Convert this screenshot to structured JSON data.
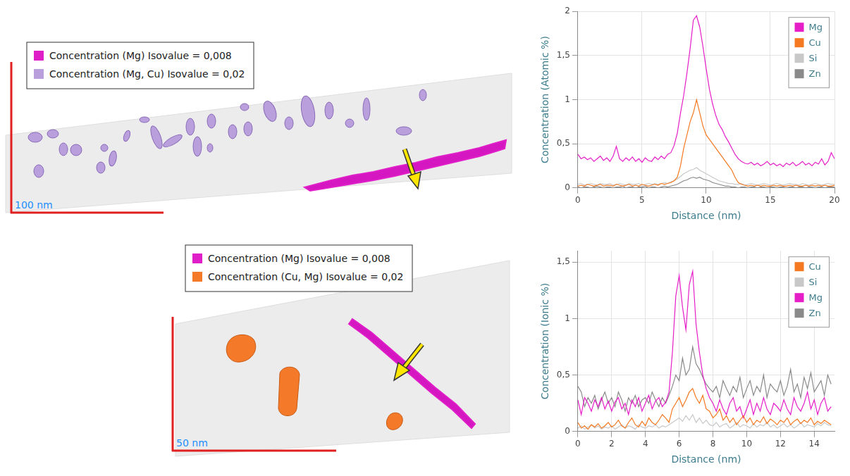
{
  "renders": [
    {
      "legend": [
        {
          "label": "Concentration (Mg) Isovalue = 0,008",
          "color": "#e01ec8"
        },
        {
          "label": "Concentration (Mg, Cu) Isovalue = 0,02",
          "color": "#b9a0dc"
        }
      ],
      "scale_bar": "100 nm"
    },
    {
      "legend": [
        {
          "label": "Concentration (Mg) Isovalue = 0,008",
          "color": "#e01ec8"
        },
        {
          "label": "Concentration (Cu, Mg) Isovalue = 0,02",
          "color": "#f47a2a"
        }
      ],
      "scale_bar": "50 nm"
    }
  ],
  "chart_data": [
    {
      "type": "line",
      "xlabel": "Distance (nm)",
      "ylabel": "Concentration (Atomic %)",
      "x": [
        0,
        0.25,
        0.5,
        0.75,
        1,
        1.25,
        1.5,
        1.75,
        2,
        2.25,
        2.5,
        2.75,
        3,
        3.25,
        3.5,
        3.75,
        4,
        4.25,
        4.5,
        4.75,
        5,
        5.25,
        5.5,
        5.75,
        6,
        6.25,
        6.5,
        6.75,
        7,
        7.25,
        7.5,
        7.75,
        8,
        8.25,
        8.5,
        8.75,
        9,
        9.25,
        9.5,
        9.75,
        10,
        10.25,
        10.5,
        10.75,
        11,
        11.25,
        11.5,
        11.75,
        12,
        12.25,
        12.5,
        12.75,
        13,
        13.25,
        13.5,
        13.75,
        14,
        14.25,
        14.5,
        14.75,
        15,
        15.25,
        15.5,
        15.75,
        16,
        16.25,
        16.5,
        16.75,
        17,
        17.25,
        17.5,
        17.75,
        18,
        18.25,
        18.5,
        18.75,
        19,
        19.25,
        19.5,
        19.75,
        20
      ],
      "series": [
        {
          "name": "Mg",
          "color": "#e61ec8",
          "values": [
            0.38,
            0.33,
            0.35,
            0.32,
            0.34,
            0.3,
            0.33,
            0.36,
            0.31,
            0.34,
            0.3,
            0.36,
            0.47,
            0.33,
            0.3,
            0.34,
            0.31,
            0.35,
            0.3,
            0.33,
            0.29,
            0.34,
            0.31,
            0.3,
            0.35,
            0.32,
            0.36,
            0.33,
            0.38,
            0.4,
            0.48,
            0.62,
            0.85,
            1.05,
            1.3,
            1.58,
            1.9,
            1.95,
            1.82,
            1.6,
            1.35,
            1.12,
            0.95,
            0.82,
            0.72,
            0.66,
            0.58,
            0.52,
            0.45,
            0.38,
            0.33,
            0.3,
            0.28,
            0.27,
            0.29,
            0.26,
            0.28,
            0.25,
            0.27,
            0.3,
            0.26,
            0.28,
            0.25,
            0.27,
            0.24,
            0.28,
            0.26,
            0.29,
            0.25,
            0.27,
            0.3,
            0.26,
            0.28,
            0.25,
            0.29,
            0.27,
            0.33,
            0.26,
            0.3,
            0.4,
            0.33
          ]
        },
        {
          "name": "Cu",
          "color": "#f47920",
          "values": [
            0.02,
            0.03,
            0.02,
            0.04,
            0.03,
            0.02,
            0.03,
            0.04,
            0.02,
            0.03,
            0.03,
            0.02,
            0.04,
            0.03,
            0.02,
            0.03,
            0.04,
            0.02,
            0.03,
            0.02,
            0.04,
            0.03,
            0.02,
            0.03,
            0.04,
            0.03,
            0.05,
            0.04,
            0.05,
            0.06,
            0.08,
            0.12,
            0.25,
            0.45,
            0.6,
            0.75,
            0.85,
            1.0,
            0.85,
            0.7,
            0.6,
            0.55,
            0.5,
            0.45,
            0.4,
            0.35,
            0.3,
            0.25,
            0.2,
            0.12,
            0.06,
            0.04,
            0.03,
            0.02,
            0.03,
            0.02,
            0.03,
            0.02,
            0.03,
            0.02,
            0.02,
            0.03,
            0.02,
            0.03,
            0.02,
            0.02,
            0.03,
            0.02,
            0.03,
            0.02,
            0.02,
            0.03,
            0.02,
            0.03,
            0.02,
            0.03,
            0.02,
            0.03,
            0.02,
            0.02,
            0.03
          ]
        },
        {
          "name": "Si",
          "color": "#c8c8c8",
          "values": [
            0.04,
            0.05,
            0.03,
            0.04,
            0.05,
            0.04,
            0.03,
            0.05,
            0.04,
            0.04,
            0.05,
            0.03,
            0.04,
            0.05,
            0.04,
            0.03,
            0.05,
            0.04,
            0.04,
            0.05,
            0.03,
            0.04,
            0.05,
            0.04,
            0.05,
            0.04,
            0.05,
            0.06,
            0.05,
            0.07,
            0.08,
            0.1,
            0.13,
            0.16,
            0.18,
            0.2,
            0.21,
            0.23,
            0.2,
            0.18,
            0.16,
            0.14,
            0.12,
            0.1,
            0.08,
            0.07,
            0.06,
            0.05,
            0.05,
            0.04,
            0.04,
            0.05,
            0.03,
            0.04,
            0.05,
            0.04,
            0.03,
            0.04,
            0.05,
            0.04,
            0.03,
            0.04,
            0.05,
            0.04,
            0.03,
            0.04,
            0.05,
            0.04,
            0.04,
            0.03,
            0.05,
            0.04,
            0.03,
            0.04,
            0.05,
            0.04,
            0.03,
            0.04,
            0.05,
            0.04,
            0.04
          ]
        },
        {
          "name": "Zn",
          "color": "#8a8a8a",
          "values": [
            0.01,
            0.0,
            0.01,
            0.01,
            0.0,
            0.01,
            0.02,
            0.01,
            0.0,
            0.01,
            0.01,
            0.0,
            0.01,
            0.01,
            0.02,
            0.0,
            0.01,
            0.01,
            0.0,
            0.01,
            0.01,
            0.02,
            0.0,
            0.01,
            0.01,
            0.0,
            0.01,
            0.02,
            0.01,
            0.02,
            0.03,
            0.04,
            0.06,
            0.08,
            0.09,
            0.11,
            0.12,
            0.11,
            0.12,
            0.1,
            0.09,
            0.08,
            0.06,
            0.05,
            0.04,
            0.03,
            0.02,
            0.02,
            0.01,
            0.01,
            0.0,
            0.01,
            0.01,
            0.0,
            0.01,
            0.01,
            0.0,
            0.01,
            0.01,
            0.0,
            0.01,
            0.01,
            0.0,
            0.01,
            0.01,
            0.0,
            0.01,
            0.01,
            0.0,
            0.01,
            0.01,
            0.0,
            0.01,
            0.01,
            0.0,
            0.01,
            0.01,
            0.0,
            0.01,
            0.01,
            0.01
          ]
        }
      ],
      "xlim": [
        0,
        20
      ],
      "ylim": [
        0,
        2
      ],
      "xticks": [
        0,
        5,
        10,
        15,
        20
      ],
      "yticks": [
        0,
        {
          "value": 0.5,
          "label": "0,5"
        },
        1,
        {
          "value": 1.5,
          "label": "1,5"
        },
        2
      ],
      "grid": true,
      "legend": "upper right"
    },
    {
      "type": "line",
      "xlabel": "Distance (nm)",
      "ylabel": "Concentration (Ionic %)",
      "x": [
        0,
        0.2,
        0.4,
        0.6,
        0.8,
        1,
        1.2,
        1.4,
        1.6,
        1.8,
        2,
        2.2,
        2.4,
        2.6,
        2.8,
        3,
        3.2,
        3.4,
        3.6,
        3.8,
        4,
        4.2,
        4.4,
        4.6,
        4.8,
        5,
        5.2,
        5.4,
        5.6,
        5.8,
        6,
        6.2,
        6.4,
        6.6,
        6.8,
        7,
        7.2,
        7.4,
        7.6,
        7.8,
        8,
        8.2,
        8.4,
        8.6,
        8.8,
        9,
        9.2,
        9.4,
        9.6,
        9.8,
        10,
        10.2,
        10.4,
        10.6,
        10.8,
        11,
        11.2,
        11.4,
        11.6,
        11.8,
        12,
        12.2,
        12.4,
        12.6,
        12.8,
        13,
        13.2,
        13.4,
        13.6,
        13.8,
        14,
        14.2,
        14.4,
        14.6,
        14.8,
        15
      ],
      "series": [
        {
          "name": "Cu",
          "color": "#f47920",
          "values": [
            0.08,
            0.03,
            0.05,
            0.02,
            0.06,
            0.04,
            0.07,
            0.03,
            0.05,
            0.08,
            0.04,
            0.06,
            0.1,
            0.05,
            0.03,
            0.08,
            0.12,
            0.06,
            0.04,
            0.09,
            0.05,
            0.12,
            0.08,
            0.06,
            0.1,
            0.15,
            0.12,
            0.08,
            0.2,
            0.25,
            0.3,
            0.22,
            0.28,
            0.35,
            0.38,
            0.3,
            0.25,
            0.32,
            0.2,
            0.18,
            0.12,
            0.15,
            0.2,
            0.1,
            0.14,
            0.08,
            0.12,
            0.06,
            0.1,
            0.14,
            0.08,
            0.12,
            0.06,
            0.1,
            0.08,
            0.13,
            0.07,
            0.11,
            0.09,
            0.06,
            0.1,
            0.08,
            0.12,
            0.06,
            0.09,
            0.11,
            0.07,
            0.1,
            0.08,
            0.12,
            0.06,
            0.09,
            0.07,
            0.1,
            0.08,
            0.06
          ]
        },
        {
          "name": "Si",
          "color": "#c8c8c8",
          "values": [
            0.03,
            0.05,
            0.02,
            0.04,
            0.06,
            0.03,
            0.05,
            0.02,
            0.04,
            0.03,
            0.05,
            0.02,
            0.04,
            0.06,
            0.03,
            0.05,
            0.04,
            0.02,
            0.06,
            0.04,
            0.03,
            0.05,
            0.04,
            0.06,
            0.03,
            0.05,
            0.04,
            0.06,
            0.08,
            0.1,
            0.12,
            0.09,
            0.14,
            0.1,
            0.15,
            0.08,
            0.12,
            0.07,
            0.1,
            0.06,
            0.05,
            0.08,
            0.04,
            0.06,
            0.07,
            0.03,
            0.05,
            0.08,
            0.04,
            0.06,
            0.05,
            0.03,
            0.07,
            0.04,
            0.06,
            0.05,
            0.08,
            0.04,
            0.06,
            0.03,
            0.05,
            0.07,
            0.04,
            0.06,
            0.03,
            0.05,
            0.08,
            0.04,
            0.06,
            0.05,
            0.04,
            0.07,
            0.05,
            0.08,
            0.06,
            0.05
          ]
        },
        {
          "name": "Mg",
          "color": "#e61ec8",
          "values": [
            0.28,
            0.15,
            0.3,
            0.25,
            0.18,
            0.28,
            0.22,
            0.3,
            0.2,
            0.27,
            0.18,
            0.26,
            0.3,
            0.2,
            0.25,
            0.15,
            0.28,
            0.22,
            0.3,
            0.18,
            0.25,
            0.32,
            0.2,
            0.27,
            0.3,
            0.22,
            0.26,
            0.35,
            0.7,
            1.2,
            1.38,
            1.1,
            0.9,
            1.3,
            1.42,
            0.95,
            0.7,
            0.5,
            0.38,
            0.3,
            0.25,
            0.18,
            0.28,
            0.2,
            0.15,
            0.25,
            0.3,
            0.18,
            0.22,
            0.12,
            0.2,
            0.28,
            0.15,
            0.25,
            0.18,
            0.3,
            0.2,
            0.15,
            0.25,
            0.22,
            0.18,
            0.28,
            0.2,
            0.15,
            0.3,
            0.22,
            0.18,
            0.25,
            0.35,
            0.2,
            0.28,
            0.15,
            0.25,
            0.3,
            0.18,
            0.22
          ]
        },
        {
          "name": "Zn",
          "color": "#8a8a8a",
          "values": [
            0.4,
            0.35,
            0.22,
            0.3,
            0.25,
            0.32,
            0.2,
            0.28,
            0.35,
            0.25,
            0.3,
            0.22,
            0.35,
            0.28,
            0.18,
            0.3,
            0.25,
            0.32,
            0.22,
            0.28,
            0.3,
            0.25,
            0.35,
            0.28,
            0.22,
            0.3,
            0.25,
            0.32,
            0.4,
            0.5,
            0.45,
            0.65,
            0.5,
            0.55,
            0.75,
            0.6,
            0.55,
            0.48,
            0.42,
            0.38,
            0.35,
            0.4,
            0.3,
            0.45,
            0.38,
            0.32,
            0.4,
            0.35,
            0.48,
            0.3,
            0.38,
            0.45,
            0.32,
            0.4,
            0.35,
            0.5,
            0.3,
            0.42,
            0.38,
            0.35,
            0.45,
            0.32,
            0.4,
            0.55,
            0.35,
            0.42,
            0.3,
            0.48,
            0.38,
            0.52,
            0.35,
            0.4,
            0.45,
            0.32,
            0.5,
            0.42
          ]
        }
      ],
      "xlim": [
        0,
        15.2
      ],
      "ylim": [
        0,
        1.6
      ],
      "xticks": [
        0,
        2,
        4,
        6,
        8,
        10,
        12,
        14
      ],
      "yticks": [
        0,
        {
          "value": 0.5,
          "label": "0,5"
        },
        1,
        {
          "value": 1.5,
          "label": "1,5"
        }
      ],
      "grid": true,
      "legend": "upper right"
    }
  ]
}
